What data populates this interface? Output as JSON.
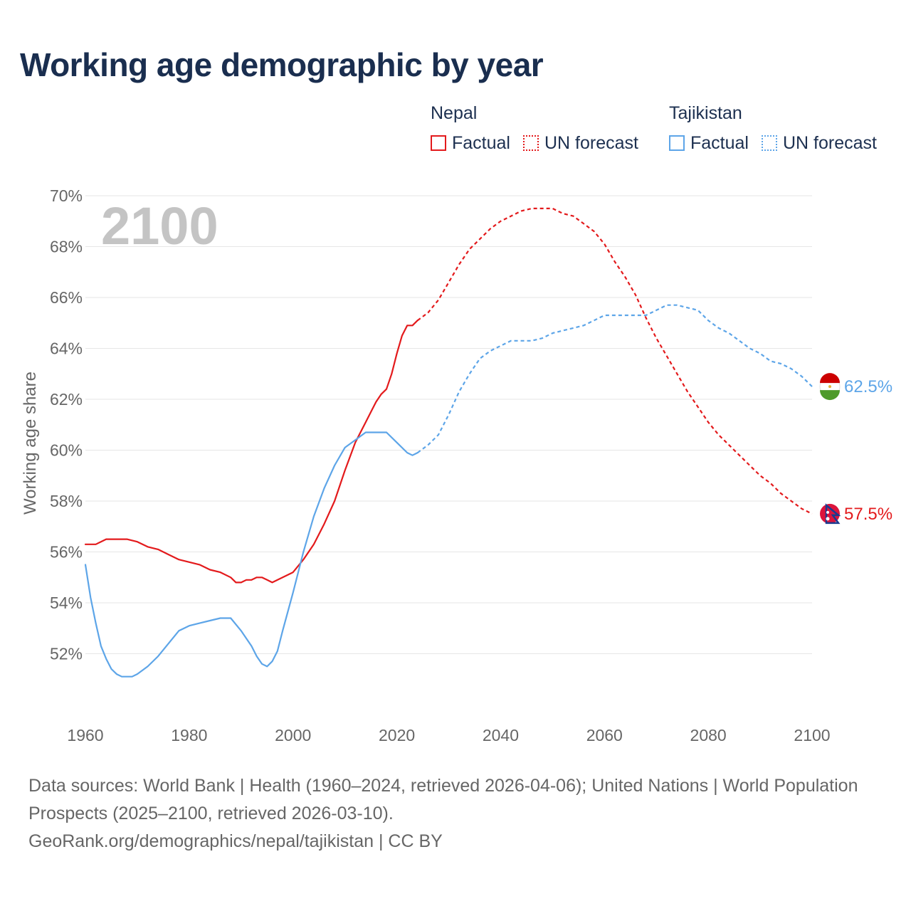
{
  "title": "Working age demographic by year",
  "legend": {
    "groups": [
      {
        "country": "Nepal",
        "factual_label": "Factual",
        "forecast_label": "UN forecast",
        "color": "#e31a1c"
      },
      {
        "country": "Tajikistan",
        "factual_label": "Factual",
        "forecast_label": "UN forecast",
        "color": "#5da5e8"
      }
    ]
  },
  "year_watermark": "2100",
  "source": {
    "line1": "Data sources: World Bank | Health (1960–2024, retrieved 2026-04-06); United Nations | World Population Prospects (2025–2100, retrieved 2026-03-10).",
    "line2": "GeoRank.org/demographics/nepal/tajikistan | CC BY"
  },
  "chart_data": {
    "type": "line",
    "title": "Working age demographic by year",
    "xlabel": "",
    "ylabel": "Working age share",
    "xlim": [
      1960,
      2100
    ],
    "ylim": [
      50,
      70
    ],
    "x_ticks": [
      1960,
      1980,
      2000,
      2020,
      2040,
      2060,
      2080,
      2100
    ],
    "x_tick_labels": [
      "1960",
      "1980",
      "2000",
      "2020",
      "2040",
      "2060",
      "2080",
      "2100"
    ],
    "y_ticks": [
      52,
      54,
      56,
      58,
      60,
      62,
      64,
      66,
      68,
      70
    ],
    "y_tick_labels": [
      "52%",
      "54%",
      "56%",
      "58%",
      "60%",
      "62%",
      "64%",
      "66%",
      "68%",
      "70%"
    ],
    "grid": true,
    "factual_end_year": 2024,
    "series": [
      {
        "name": "Nepal",
        "color": "#e31a1c",
        "end_label": "57.5%",
        "points": [
          [
            1960,
            56.3
          ],
          [
            1962,
            56.3
          ],
          [
            1964,
            56.5
          ],
          [
            1966,
            56.5
          ],
          [
            1968,
            56.5
          ],
          [
            1970,
            56.4
          ],
          [
            1972,
            56.2
          ],
          [
            1974,
            56.1
          ],
          [
            1976,
            55.9
          ],
          [
            1978,
            55.7
          ],
          [
            1980,
            55.6
          ],
          [
            1982,
            55.5
          ],
          [
            1984,
            55.3
          ],
          [
            1986,
            55.2
          ],
          [
            1988,
            55.0
          ],
          [
            1989,
            54.8
          ],
          [
            1990,
            54.8
          ],
          [
            1991,
            54.9
          ],
          [
            1992,
            54.9
          ],
          [
            1993,
            55.0
          ],
          [
            1994,
            55.0
          ],
          [
            1995,
            54.9
          ],
          [
            1996,
            54.8
          ],
          [
            1998,
            55.0
          ],
          [
            2000,
            55.2
          ],
          [
            2002,
            55.7
          ],
          [
            2004,
            56.3
          ],
          [
            2006,
            57.1
          ],
          [
            2008,
            58.0
          ],
          [
            2010,
            59.2
          ],
          [
            2012,
            60.3
          ],
          [
            2014,
            61.1
          ],
          [
            2015,
            61.5
          ],
          [
            2016,
            61.9
          ],
          [
            2017,
            62.2
          ],
          [
            2018,
            62.4
          ],
          [
            2019,
            63.0
          ],
          [
            2020,
            63.8
          ],
          [
            2021,
            64.5
          ],
          [
            2022,
            64.9
          ],
          [
            2023,
            64.9
          ],
          [
            2024,
            65.1
          ],
          [
            2026,
            65.4
          ],
          [
            2028,
            65.9
          ],
          [
            2030,
            66.6
          ],
          [
            2032,
            67.3
          ],
          [
            2034,
            67.9
          ],
          [
            2036,
            68.3
          ],
          [
            2038,
            68.7
          ],
          [
            2040,
            69.0
          ],
          [
            2042,
            69.2
          ],
          [
            2044,
            69.4
          ],
          [
            2046,
            69.5
          ],
          [
            2048,
            69.5
          ],
          [
            2050,
            69.5
          ],
          [
            2052,
            69.3
          ],
          [
            2054,
            69.2
          ],
          [
            2056,
            68.9
          ],
          [
            2058,
            68.6
          ],
          [
            2060,
            68.1
          ],
          [
            2062,
            67.4
          ],
          [
            2064,
            66.8
          ],
          [
            2066,
            66.1
          ],
          [
            2068,
            65.2
          ],
          [
            2070,
            64.4
          ],
          [
            2072,
            63.7
          ],
          [
            2074,
            63.0
          ],
          [
            2076,
            62.3
          ],
          [
            2078,
            61.7
          ],
          [
            2080,
            61.1
          ],
          [
            2082,
            60.6
          ],
          [
            2084,
            60.2
          ],
          [
            2086,
            59.8
          ],
          [
            2088,
            59.4
          ],
          [
            2090,
            59.0
          ],
          [
            2092,
            58.7
          ],
          [
            2094,
            58.3
          ],
          [
            2096,
            58.0
          ],
          [
            2098,
            57.7
          ],
          [
            2100,
            57.5
          ]
        ]
      },
      {
        "name": "Tajikistan",
        "color": "#5da5e8",
        "end_label": "62.5%",
        "points": [
          [
            1960,
            55.5
          ],
          [
            1961,
            54.2
          ],
          [
            1962,
            53.2
          ],
          [
            1963,
            52.3
          ],
          [
            1964,
            51.8
          ],
          [
            1965,
            51.4
          ],
          [
            1966,
            51.2
          ],
          [
            1967,
            51.1
          ],
          [
            1968,
            51.1
          ],
          [
            1969,
            51.1
          ],
          [
            1970,
            51.2
          ],
          [
            1972,
            51.5
          ],
          [
            1974,
            51.9
          ],
          [
            1976,
            52.4
          ],
          [
            1978,
            52.9
          ],
          [
            1980,
            53.1
          ],
          [
            1982,
            53.2
          ],
          [
            1984,
            53.3
          ],
          [
            1986,
            53.4
          ],
          [
            1988,
            53.4
          ],
          [
            1990,
            52.9
          ],
          [
            1992,
            52.3
          ],
          [
            1993,
            51.9
          ],
          [
            1994,
            51.6
          ],
          [
            1995,
            51.5
          ],
          [
            1996,
            51.7
          ],
          [
            1997,
            52.1
          ],
          [
            1998,
            52.9
          ],
          [
            2000,
            54.4
          ],
          [
            2002,
            56.0
          ],
          [
            2004,
            57.4
          ],
          [
            2006,
            58.5
          ],
          [
            2008,
            59.4
          ],
          [
            2010,
            60.1
          ],
          [
            2012,
            60.4
          ],
          [
            2014,
            60.7
          ],
          [
            2016,
            60.7
          ],
          [
            2018,
            60.7
          ],
          [
            2020,
            60.3
          ],
          [
            2022,
            59.9
          ],
          [
            2023,
            59.8
          ],
          [
            2024,
            59.9
          ],
          [
            2026,
            60.2
          ],
          [
            2028,
            60.6
          ],
          [
            2030,
            61.4
          ],
          [
            2032,
            62.3
          ],
          [
            2034,
            63.0
          ],
          [
            2036,
            63.6
          ],
          [
            2038,
            63.9
          ],
          [
            2040,
            64.1
          ],
          [
            2042,
            64.3
          ],
          [
            2044,
            64.3
          ],
          [
            2046,
            64.3
          ],
          [
            2048,
            64.4
          ],
          [
            2050,
            64.6
          ],
          [
            2052,
            64.7
          ],
          [
            2054,
            64.8
          ],
          [
            2056,
            64.9
          ],
          [
            2058,
            65.1
          ],
          [
            2060,
            65.3
          ],
          [
            2062,
            65.3
          ],
          [
            2064,
            65.3
          ],
          [
            2066,
            65.3
          ],
          [
            2068,
            65.3
          ],
          [
            2070,
            65.5
          ],
          [
            2072,
            65.7
          ],
          [
            2074,
            65.7
          ],
          [
            2076,
            65.6
          ],
          [
            2078,
            65.5
          ],
          [
            2080,
            65.1
          ],
          [
            2082,
            64.8
          ],
          [
            2084,
            64.6
          ],
          [
            2086,
            64.3
          ],
          [
            2088,
            64.0
          ],
          [
            2090,
            63.8
          ],
          [
            2092,
            63.5
          ],
          [
            2094,
            63.4
          ],
          [
            2096,
            63.2
          ],
          [
            2098,
            62.9
          ],
          [
            2100,
            62.5
          ]
        ]
      }
    ]
  }
}
